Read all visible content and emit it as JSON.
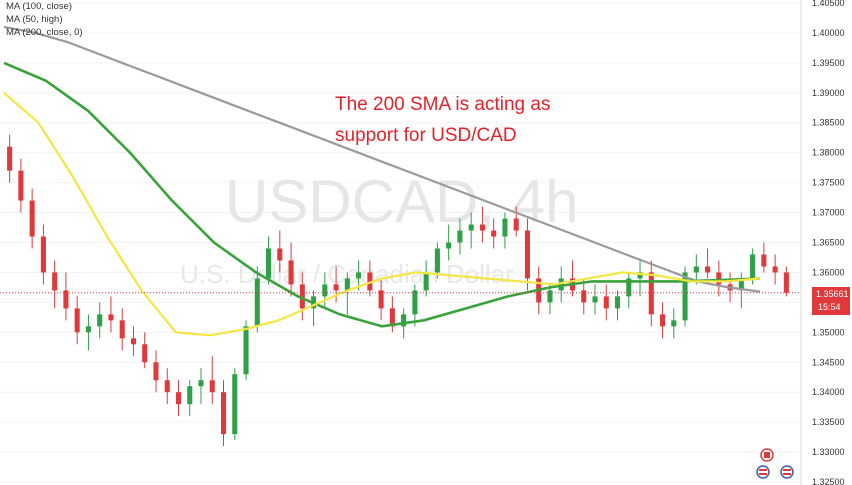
{
  "chart_data": {
    "type": "candlestick",
    "symbol": "USDCAD",
    "timeframe": "4h",
    "watermark_symbol": "USDCAD, 4h",
    "watermark_name": "U.S. Dollar / Canadian Dollar",
    "legend": [
      "MA (100, close)",
      "MA (50, high)",
      "MA (200, close, 0)"
    ],
    "annotation": [
      "The 200 SMA is acting as",
      "support for USD/CAD"
    ],
    "y_ticks": [
      "1.40500",
      "1.40000",
      "1.39500",
      "1.39000",
      "1.38500",
      "1.38000",
      "1.37500",
      "1.37000",
      "1.36500",
      "1.36000",
      "1.35500",
      "1.35000",
      "1.34500",
      "1.34000",
      "1.33500",
      "1.33000",
      "1.32500"
    ],
    "ylim": [
      1.3245,
      1.4055
    ],
    "current_price": "1.35661",
    "countdown": "15:54",
    "colors": {
      "up": "#2ea047",
      "down": "#e0393b",
      "ma100": "#3aa23a",
      "ma50": "#f5e642",
      "ma200": "#9a9a9a",
      "price_line": "#e0393b",
      "annotation": "#e8202a"
    },
    "candles": [
      [
        1.381,
        1.383,
        1.375,
        1.377
      ],
      [
        1.377,
        1.379,
        1.37,
        1.372
      ],
      [
        1.372,
        1.374,
        1.364,
        1.366
      ],
      [
        1.366,
        1.368,
        1.358,
        1.36
      ],
      [
        1.36,
        1.362,
        1.354,
        1.357
      ],
      [
        1.357,
        1.36,
        1.352,
        1.354
      ],
      [
        1.354,
        1.356,
        1.348,
        1.35
      ],
      [
        1.35,
        1.353,
        1.347,
        1.351
      ],
      [
        1.351,
        1.355,
        1.349,
        1.353
      ],
      [
        1.353,
        1.356,
        1.35,
        1.352
      ],
      [
        1.352,
        1.354,
        1.347,
        1.349
      ],
      [
        1.349,
        1.351,
        1.346,
        1.348
      ],
      [
        1.348,
        1.35,
        1.344,
        1.345
      ],
      [
        1.345,
        1.347,
        1.34,
        1.342
      ],
      [
        1.342,
        1.344,
        1.338,
        1.34
      ],
      [
        1.34,
        1.342,
        1.336,
        1.338
      ],
      [
        1.338,
        1.342,
        1.336,
        1.341
      ],
      [
        1.341,
        1.344,
        1.338,
        1.342
      ],
      [
        1.342,
        1.346,
        1.338,
        1.34
      ],
      [
        1.34,
        1.342,
        1.331,
        1.333
      ],
      [
        1.333,
        1.344,
        1.332,
        1.343
      ],
      [
        1.343,
        1.352,
        1.342,
        1.351
      ],
      [
        1.351,
        1.361,
        1.35,
        1.359
      ],
      [
        1.359,
        1.366,
        1.358,
        1.364
      ],
      [
        1.364,
        1.367,
        1.36,
        1.362
      ],
      [
        1.362,
        1.365,
        1.356,
        1.358
      ],
      [
        1.358,
        1.36,
        1.352,
        1.354
      ],
      [
        1.354,
        1.357,
        1.351,
        1.356
      ],
      [
        1.356,
        1.36,
        1.354,
        1.358
      ],
      [
        1.358,
        1.361,
        1.355,
        1.357
      ],
      [
        1.357,
        1.36,
        1.353,
        1.359
      ],
      [
        1.359,
        1.362,
        1.357,
        1.36
      ],
      [
        1.36,
        1.362,
        1.356,
        1.357
      ],
      [
        1.357,
        1.359,
        1.352,
        1.354
      ],
      [
        1.354,
        1.356,
        1.35,
        1.351
      ],
      [
        1.351,
        1.354,
        1.349,
        1.353
      ],
      [
        1.353,
        1.358,
        1.351,
        1.357
      ],
      [
        1.357,
        1.362,
        1.356,
        1.36
      ],
      [
        1.36,
        1.365,
        1.359,
        1.364
      ],
      [
        1.364,
        1.368,
        1.362,
        1.365
      ],
      [
        1.365,
        1.369,
        1.363,
        1.367
      ],
      [
        1.367,
        1.37,
        1.364,
        1.368
      ],
      [
        1.368,
        1.371,
        1.365,
        1.367
      ],
      [
        1.367,
        1.369,
        1.364,
        1.366
      ],
      [
        1.366,
        1.37,
        1.364,
        1.369
      ],
      [
        1.369,
        1.371,
        1.366,
        1.367
      ],
      [
        1.367,
        1.369,
        1.357,
        1.359
      ],
      [
        1.359,
        1.361,
        1.353,
        1.355
      ],
      [
        1.355,
        1.358,
        1.353,
        1.357
      ],
      [
        1.357,
        1.361,
        1.355,
        1.359
      ],
      [
        1.359,
        1.362,
        1.356,
        1.357
      ],
      [
        1.357,
        1.359,
        1.353,
        1.355
      ],
      [
        1.355,
        1.358,
        1.353,
        1.356
      ],
      [
        1.356,
        1.358,
        1.352,
        1.354
      ],
      [
        1.354,
        1.357,
        1.352,
        1.356
      ],
      [
        1.356,
        1.36,
        1.354,
        1.359
      ],
      [
        1.359,
        1.362,
        1.356,
        1.36
      ],
      [
        1.36,
        1.362,
        1.351,
        1.353
      ],
      [
        1.353,
        1.355,
        1.349,
        1.351
      ],
      [
        1.351,
        1.354,
        1.349,
        1.352
      ],
      [
        1.352,
        1.361,
        1.351,
        1.36
      ],
      [
        1.36,
        1.363,
        1.358,
        1.361
      ],
      [
        1.361,
        1.364,
        1.359,
        1.36
      ],
      [
        1.36,
        1.362,
        1.356,
        1.358
      ],
      [
        1.358,
        1.36,
        1.355,
        1.357
      ],
      [
        1.357,
        1.36,
        1.354,
        1.359
      ],
      [
        1.359,
        1.364,
        1.358,
        1.363
      ],
      [
        1.363,
        1.365,
        1.36,
        1.361
      ],
      [
        1.361,
        1.363,
        1.358,
        1.36
      ],
      [
        1.36,
        1.361,
        1.356,
        1.3566
      ]
    ],
    "ma200": [
      1.401,
      1.4,
      1.3985,
      1.3965,
      1.3945,
      1.3925,
      1.3905,
      1.3885,
      1.3865,
      1.3845,
      1.3825,
      1.3805,
      1.3785,
      1.3765,
      1.3745,
      1.3725,
      1.3705,
      1.3685,
      1.3665,
      1.3645,
      1.3625,
      1.3605,
      1.3585,
      1.3575,
      1.3568
    ],
    "ma100": [
      1.395,
      1.392,
      1.387,
      1.38,
      1.372,
      1.365,
      1.36,
      1.356,
      1.353,
      1.351,
      1.352,
      1.354,
      1.356,
      1.3575,
      1.3585,
      1.3585,
      1.3585,
      1.3587,
      1.359
    ],
    "ma50": [
      1.39,
      1.385,
      1.376,
      1.366,
      1.357,
      1.35,
      1.3495,
      1.3505,
      1.352,
      1.3545,
      1.357,
      1.359,
      1.36,
      1.3595,
      1.359,
      1.3585,
      1.358,
      1.359,
      1.36,
      1.3595,
      1.3585,
      1.3585,
      1.359
    ]
  }
}
